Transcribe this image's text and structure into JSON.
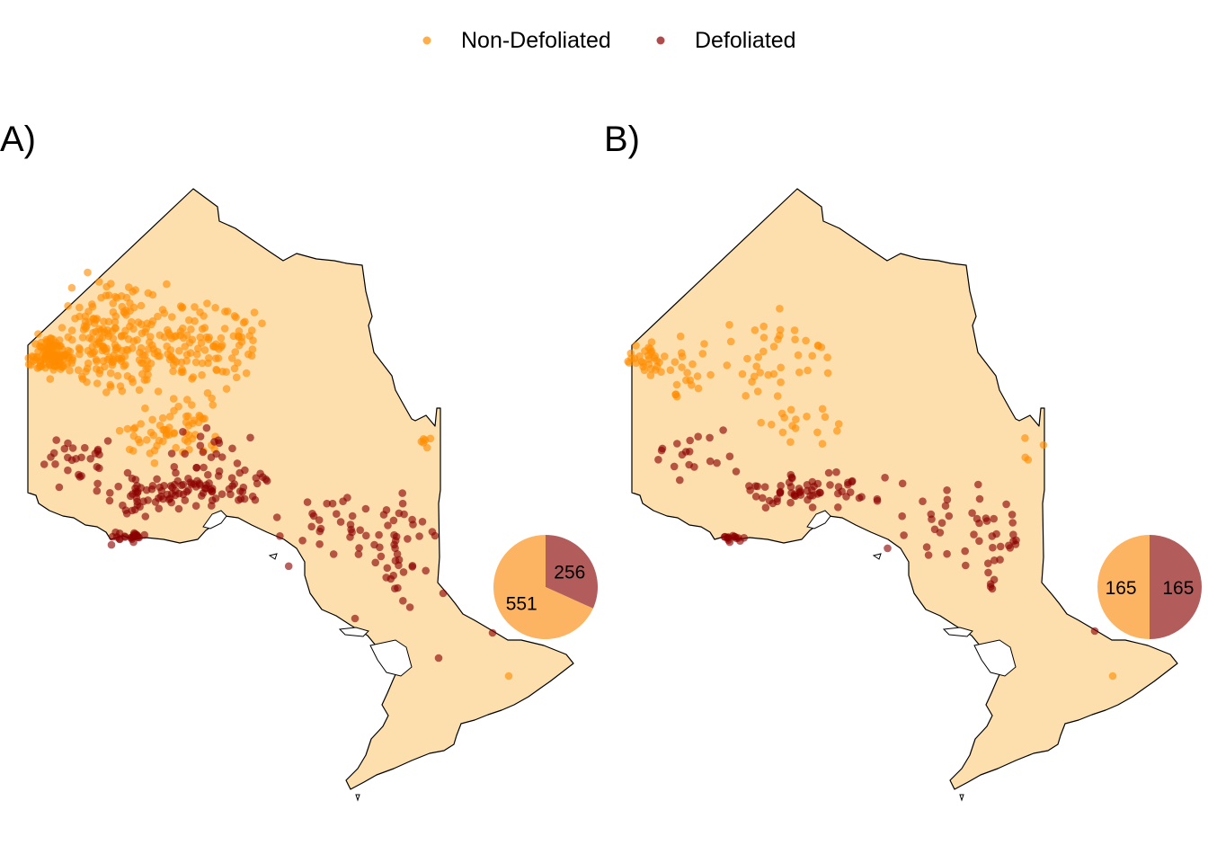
{
  "legend": {
    "items": [
      {
        "label": "Non-Defoliated",
        "color": "#FF8C00"
      },
      {
        "label": "Defoliated",
        "color": "#8B0000"
      }
    ]
  },
  "colors": {
    "land": "#FDDEAD",
    "border": "#000000",
    "pie_non_defoliated": "#FDB462",
    "pie_defoliated": "#B35C5C"
  },
  "panels": [
    {
      "label": "A)",
      "pie": {
        "non_defoliated": 551,
        "defoliated": 256
      }
    },
    {
      "label": "B)",
      "pie": {
        "non_defoliated": 165,
        "defoliated": 165
      }
    }
  ]
}
